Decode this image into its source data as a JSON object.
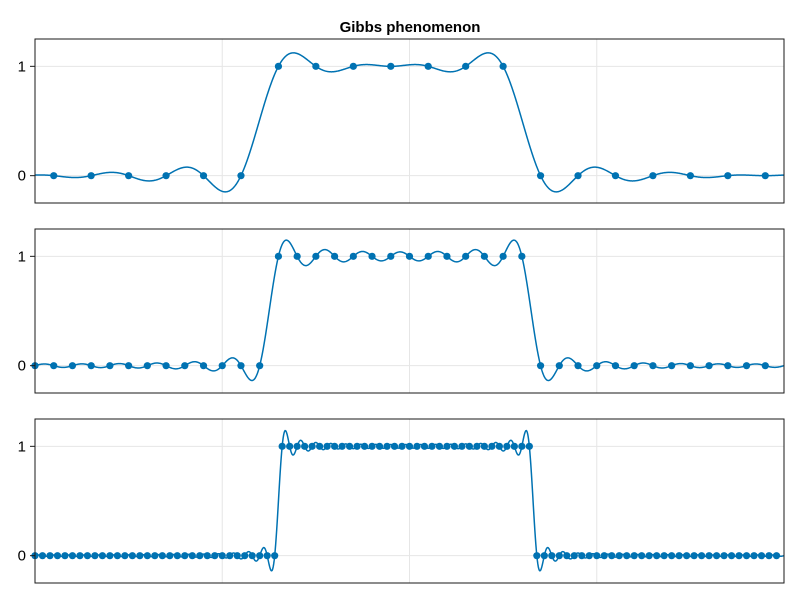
{
  "figure": {
    "title": "Gibbs phenomenon",
    "colors": {
      "series": "#0072b2",
      "grid": "#e6e6e6",
      "frame": "#1a1a1a",
      "background": "#ffffff"
    }
  },
  "chart_data": [
    {
      "type": "line",
      "title": "Gibbs phenomenon",
      "xlabel": "",
      "ylabel": "",
      "xlim": [
        0,
        1
      ],
      "ylim": [
        -0.25,
        1.25
      ],
      "yticks": [
        0,
        1
      ],
      "ytick_labels": [
        "0",
        "1"
      ],
      "xgrid": [
        0.25,
        0.5,
        0.75
      ],
      "grid": true,
      "samples": 20,
      "sample_x": [
        0.025,
        0.075,
        0.125,
        0.175,
        0.225,
        0.275,
        0.325,
        0.375,
        0.425,
        0.475,
        0.525,
        0.575,
        0.625,
        0.675,
        0.725,
        0.775,
        0.825,
        0.875,
        0.925,
        0.975
      ],
      "sample_y": [
        0,
        0,
        0,
        0,
        0,
        0,
        1,
        1,
        1,
        1,
        1,
        1,
        1,
        0,
        0,
        0,
        0,
        0,
        0,
        0
      ],
      "curve": "trigonometric interpolation of the samples (overshoot ≈ 1.1 near the jumps)"
    },
    {
      "type": "line",
      "xlim": [
        0,
        1
      ],
      "ylim": [
        -0.25,
        1.25
      ],
      "yticks": [
        0,
        1
      ],
      "ytick_labels": [
        "0",
        "1"
      ],
      "xgrid": [
        0.25,
        0.5,
        0.75
      ],
      "grid": true,
      "samples": 40,
      "sample_x": [
        0,
        0.025,
        0.05,
        0.075,
        0.1,
        0.125,
        0.15,
        0.175,
        0.2,
        0.225,
        0.25,
        0.275,
        0.3,
        0.325,
        0.35,
        0.375,
        0.4,
        0.425,
        0.45,
        0.475,
        0.5,
        0.525,
        0.55,
        0.575,
        0.6,
        0.625,
        0.65,
        0.675,
        0.7,
        0.725,
        0.75,
        0.775,
        0.8,
        0.825,
        0.85,
        0.875,
        0.9,
        0.925,
        0.95,
        0.975
      ],
      "sample_y": [
        0,
        0,
        0,
        0,
        0,
        0,
        0,
        0,
        0,
        0,
        0,
        0,
        0,
        1,
        1,
        1,
        1,
        1,
        1,
        1,
        1,
        1,
        1,
        1,
        1,
        1,
        1,
        0,
        0,
        0,
        0,
        0,
        0,
        0,
        0,
        0,
        0,
        0,
        0,
        0
      ],
      "curve": "trigonometric interpolation of the samples (overshoot ≈ 1.12 near the jumps)"
    },
    {
      "type": "line",
      "xlim": [
        0,
        1
      ],
      "ylim": [
        -0.25,
        1.25
      ],
      "yticks": [
        0,
        1
      ],
      "ytick_labels": [
        "0",
        "1"
      ],
      "xgrid": [
        0.25,
        0.5,
        0.75
      ],
      "grid": true,
      "samples": 100,
      "sample_rule": "x = 0.01·k for k = 0…99; y = 1 for 0.325 ≤ x ≤ 0.665, otherwise 0",
      "curve": "trigonometric interpolation of the samples (overshoot ≈ 1.13 near the jumps)"
    }
  ]
}
